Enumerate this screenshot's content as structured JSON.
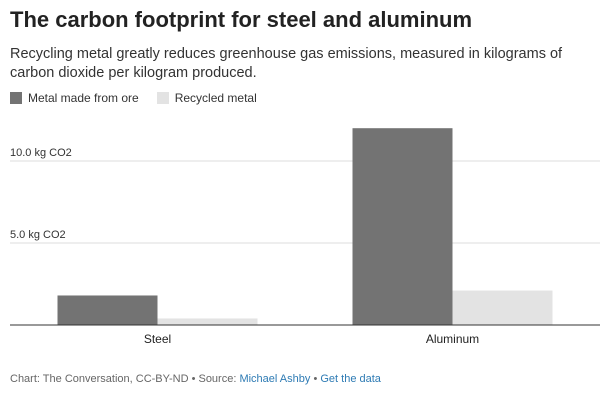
{
  "header": {
    "title": "The carbon footprint for steel and aluminum",
    "subtitle": "Recycling metal greatly reduces greenhouse gas emissions, measured in kilograms of carbon dioxide per kilogram produced."
  },
  "legend": {
    "ore_label": "Metal made from ore",
    "recycled_label": "Recycled metal"
  },
  "footer": {
    "credit": "Chart: The Conversation, CC-BY-ND",
    "sep1": " • Source: ",
    "source_name": "Michael Ashby",
    "sep2": " • ",
    "data_link": "Get the data"
  },
  "colors": {
    "ore": "#737373",
    "recycled": "#e3e3e3",
    "grid": "#dddddd",
    "axis": "#333333",
    "link": "#2e7bb4"
  },
  "chart_data": {
    "type": "bar",
    "title": "The carbon footprint for steel and aluminum",
    "subtitle": "Recycling metal greatly reduces greenhouse gas emissions, measured in kilograms of carbon dioxide per kilogram produced.",
    "categories": [
      "Steel",
      "Aluminum"
    ],
    "series": [
      {
        "name": "Metal made from ore",
        "values": [
          1.8,
          12.0
        ]
      },
      {
        "name": "Recycled metal",
        "values": [
          0.4,
          2.1
        ]
      }
    ],
    "y_ticks": [
      {
        "value": 5,
        "label": "5.0 kg CO2"
      },
      {
        "value": 10,
        "label": "10.0 kg CO2"
      }
    ],
    "ylim": [
      0,
      12.5
    ],
    "grid": true,
    "legend_position": "top-left"
  }
}
